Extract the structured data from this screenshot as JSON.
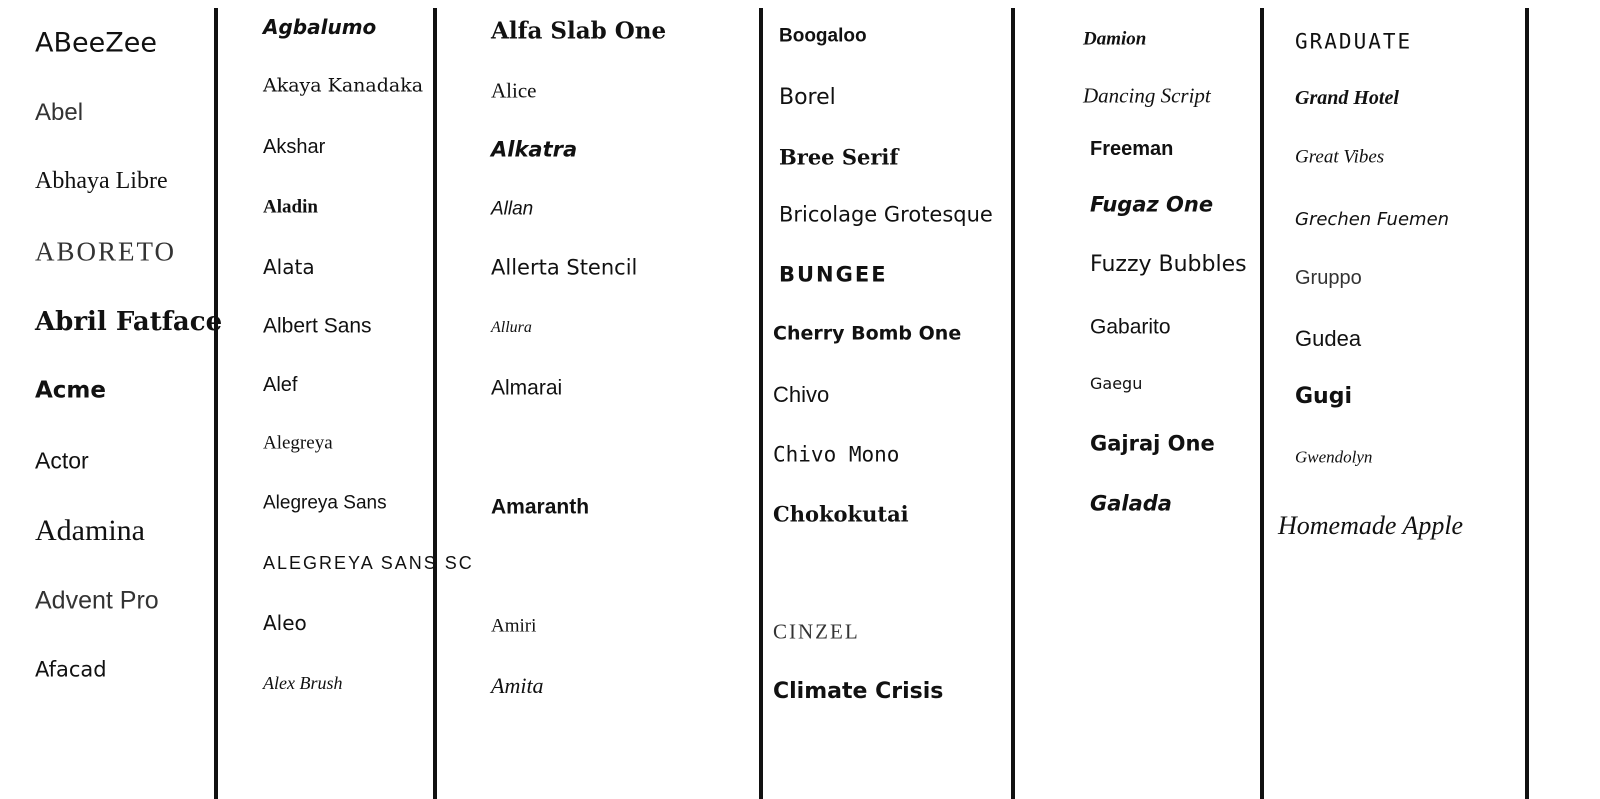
{
  "columns": [
    {
      "items": [
        "ABeeZee",
        "Abel",
        "Abhaya Libre",
        "ABORETO",
        "Abril Fatface",
        "Acme",
        "Actor",
        "Adamina",
        "Advent Pro",
        "Afacad"
      ]
    },
    {
      "items": [
        "Agbalumo",
        "Akaya Kanadaka",
        "Akshar",
        "Aladin",
        "Alata",
        "Albert Sans",
        "Alef",
        "Alegreya",
        "Alegreya Sans",
        "Alegreya Sans SC",
        "Aleo",
        "Alex Brush"
      ]
    },
    {
      "items": [
        "Alfa Slab One",
        "Alice",
        "Alkatra",
        "Allan",
        "Allerta Stencil",
        "Allura",
        "Almarai",
        "Amaranth",
        "Amiri",
        "Amita"
      ]
    },
    {
      "items": [
        "Boogaloo",
        "Borel",
        "Bree Serif",
        "Bricolage Grotesque",
        "BUNGEE",
        "Cherry Bomb One",
        "Chivo",
        "Chivo Mono",
        "Chokokutai",
        "CINZEL",
        "Climate Crisis"
      ]
    },
    {
      "items": [
        "Damion",
        "Dancing Script",
        "Freeman",
        "Fugaz One",
        "Fuzzy Bubbles",
        "Gabarito",
        "Gaegu",
        "Gajraj One",
        "Galada"
      ]
    },
    {
      "items": [
        "GRADUATE",
        "Grand Hotel",
        "Great Vibes",
        "Grechen Fuemen",
        "Gruppo",
        "Gudea",
        "Gugi",
        "Gwendolyn",
        "Homemade Apple"
      ]
    }
  ]
}
